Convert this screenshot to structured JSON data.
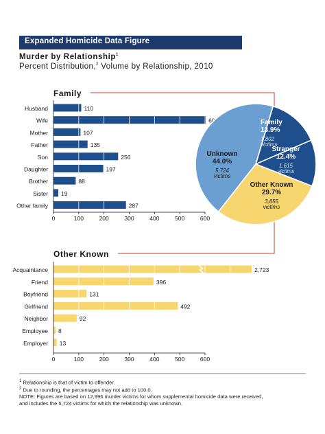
{
  "header": {
    "banner": "Expanded Homicide Data Figure",
    "title": "Murder by Relationship",
    "title_note": "1",
    "subtitle_pre": "Percent Distribution,",
    "subtitle_note": "2",
    "subtitle_post": " Volume by Relationship, 2010"
  },
  "colors": {
    "navy": "#1d3a6e",
    "family_bar": "#1f4e8c",
    "other_bar": "#f7d670",
    "unknown_slice": "#6b9fd2",
    "stranger_slice": "#1f4e8c",
    "connector": "#c0392b"
  },
  "chart_data": [
    {
      "type": "pie",
      "slices": [
        {
          "name": "Family",
          "percent": 13.9,
          "percent_label": "13.9%",
          "victims": 1802,
          "count_label": "1,802",
          "unit_label": "victims",
          "color": "#1f4e8c"
        },
        {
          "name": "Stranger",
          "percent": 12.4,
          "percent_label": "12.4%",
          "victims": 1615,
          "count_label": "1,615",
          "unit_label": "victims",
          "color": "#1f4e8c"
        },
        {
          "name": "Other Known",
          "percent": 29.7,
          "percent_label": "29.7%",
          "victims": 3855,
          "count_label": "3,855",
          "unit_label": "victims",
          "color": "#f7d670"
        },
        {
          "name": "Unknown",
          "percent": 44.0,
          "percent_label": "44.0%",
          "victims": 5724,
          "count_label": "5,724",
          "unit_label": "victims",
          "color": "#6b9fd2"
        }
      ]
    },
    {
      "type": "bar",
      "orientation": "horizontal",
      "title": "Family",
      "categories": [
        "Husband",
        "Wife",
        "Mother",
        "Father",
        "Son",
        "Daughter",
        "Brother",
        "Sister",
        "Other family"
      ],
      "values": [
        110,
        603,
        107,
        135,
        256,
        197,
        88,
        19,
        287
      ],
      "value_labels": [
        "110",
        "603",
        "107",
        "135",
        "256",
        "197",
        "88",
        "19",
        "287"
      ],
      "xlim": [
        0,
        600
      ],
      "ticks": [
        "0",
        "100",
        "200",
        "300",
        "400",
        "500",
        "600"
      ],
      "grid": false
    },
    {
      "type": "bar",
      "orientation": "horizontal",
      "title": "Other Known",
      "categories": [
        "Acquaintance",
        "Friend",
        "Boyfriend",
        "Girlfriend",
        "Neighbor",
        "Employee",
        "Employer"
      ],
      "values": [
        2723,
        396,
        131,
        492,
        92,
        8,
        13
      ],
      "value_labels": [
        "2,723",
        "396",
        "131",
        "492",
        "92",
        "8",
        "13"
      ],
      "xlim": [
        0,
        600
      ],
      "ticks": [
        "0",
        "100",
        "200",
        "300",
        "400",
        "500",
        "600"
      ],
      "axis_break": "Acquaintance",
      "grid": false
    }
  ],
  "footnotes": [
    {
      "mark": "1",
      "text": " Relationship is that of victim to offender."
    },
    {
      "mark": "2",
      "text": " Due to rounding, the percentages may not add to 100.0."
    },
    {
      "mark": "",
      "text": "NOTE:  Figures are based on 12,996 murder victims for whom supplemental homicide data were received,"
    },
    {
      "mark": "",
      "text": "and includes the 5,724 victims for which the relationship was unknown."
    }
  ]
}
